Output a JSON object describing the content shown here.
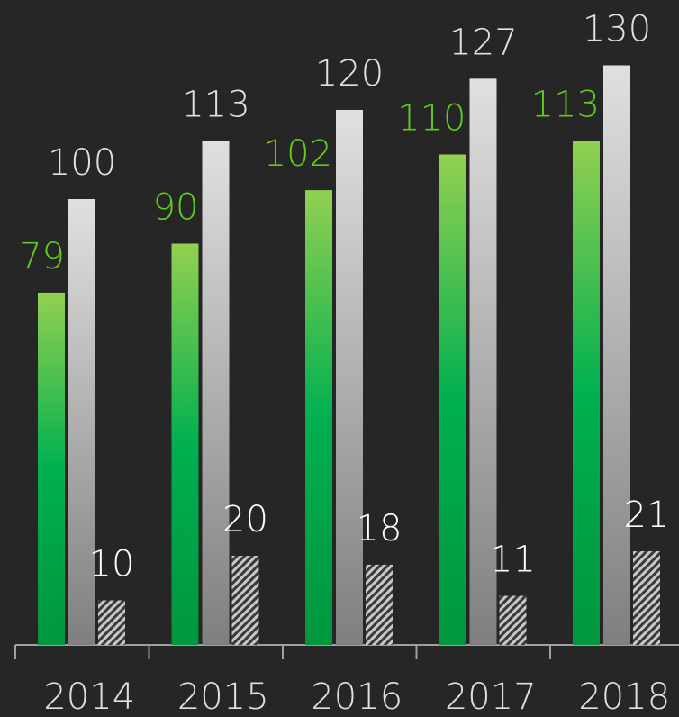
{
  "chart_data": {
    "type": "bar",
    "categories": [
      "2014",
      "2015",
      "2016",
      "2017",
      "2018"
    ],
    "series": [
      {
        "color": "#00b050",
        "values": [
          79,
          90,
          102,
          110,
          113
        ]
      },
      {
        "color": "#bfbfbf",
        "values": [
          100,
          113,
          120,
          127,
          130
        ]
      },
      {
        "color": "#a6a6a6",
        "values": [
          10,
          20,
          18,
          11,
          21
        ]
      }
    ],
    "label_colors": [
      "#5ecb1e",
      "#e0e0e0",
      "#ffffff"
    ],
    "ylim": [
      0,
      140
    ]
  }
}
